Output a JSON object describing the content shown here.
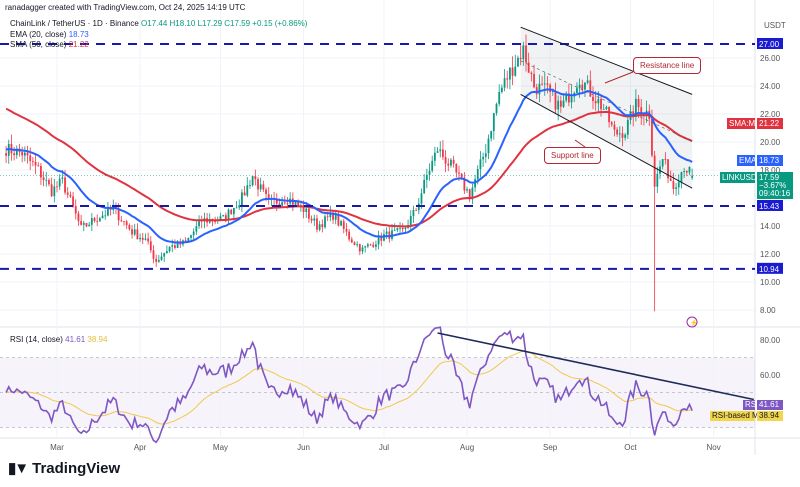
{
  "credit": "ranadagger created with TradingView.com, Oct 24, 2025 14:19 UTC",
  "legend": {
    "symbol": "ChainLink / TetherUS · 1D · Binance",
    "o": "O17.44",
    "h": "H18.10",
    "l": "L17.29",
    "c": "C17.59",
    "chg": "+0.15 (+0.86%)",
    "ema": "EMA (20, close)",
    "ema_val": "18.73",
    "sma": "SMA (50, close)",
    "sma_val": "21.22",
    "rsi": "RSI (14, close)",
    "rsi_val": "41.61",
    "rsi_ma_val": "38.94"
  },
  "axis": {
    "currency": "USDT",
    "price_ticks": [
      "26.00",
      "24.00",
      "22.00",
      "20.00",
      "18.00",
      "14.00",
      "12.00",
      "10.00",
      "8.00"
    ],
    "rsi_ticks": [
      "80.00",
      "60.00"
    ],
    "date_ticks": [
      {
        "label": "Mar",
        "date": "2025-03-01"
      },
      {
        "label": "Apr",
        "date": "2025-04-01"
      },
      {
        "label": "May",
        "date": "2025-05-01"
      },
      {
        "label": "Jun",
        "date": "2025-06-01"
      },
      {
        "label": "Jul",
        "date": "2025-07-01"
      },
      {
        "label": "Aug",
        "date": "2025-08-01"
      },
      {
        "label": "Sep",
        "date": "2025-09-01"
      },
      {
        "label": "Oct",
        "date": "2025-10-01"
      },
      {
        "label": "Nov",
        "date": "2025-11-01"
      }
    ]
  },
  "badges": {
    "level_top": "27.00",
    "level_mid": "15.43",
    "level_low": "10.94",
    "sma_name": "SMA:MA",
    "sma_val": "21.22",
    "ema_name": "EMA",
    "ema_val": "18.73",
    "sym": "LINKUSDT",
    "price": "17.59",
    "pct": "−3.67%",
    "countdown": "09:40:16",
    "rsi_name": "RSI",
    "rsi_val": "41.61",
    "rsima_name": "RSI-based MA",
    "rsima_val": "38.94"
  },
  "annotations": {
    "resistance": "Resistance line",
    "support": "Support line"
  },
  "colors": {
    "up": "#089981",
    "down": "#f23645",
    "ema": "#2962ff",
    "sma": "#e0323f",
    "level": "#1a1aa8",
    "rsi": "#7e57c2",
    "rsi_ma": "#f2c94c"
  },
  "brand": "TradingView",
  "chart_data": {
    "type": "candlestick",
    "timeframe": "1D",
    "ylim": [
      7,
      29
    ],
    "rsi_ylim": [
      25,
      90
    ],
    "closes": [
      [
        "2025-02-10",
        19.5
      ],
      [
        "2025-02-16",
        19.2
      ],
      [
        "2025-02-22",
        18
      ],
      [
        "2025-02-27",
        16.5
      ],
      [
        "2025-03-03",
        17.2
      ],
      [
        "2025-03-10",
        13.8
      ],
      [
        "2025-03-16",
        14.6
      ],
      [
        "2025-03-22",
        15.2
      ],
      [
        "2025-03-29",
        13.6
      ],
      [
        "2025-04-03",
        13.0
      ],
      [
        "2025-04-07",
        11.5
      ],
      [
        "2025-04-12",
        12.5
      ],
      [
        "2025-04-18",
        12.8
      ],
      [
        "2025-04-24",
        14.4
      ],
      [
        "2025-05-02",
        14.5
      ],
      [
        "2025-05-09",
        16.0
      ],
      [
        "2025-05-13",
        17.6
      ],
      [
        "2025-05-19",
        15.6
      ],
      [
        "2025-05-26",
        16.0
      ],
      [
        "2025-06-01",
        15.2
      ],
      [
        "2025-06-06",
        14.0
      ],
      [
        "2025-06-12",
        14.8
      ],
      [
        "2025-06-18",
        13.2
      ],
      [
        "2025-06-23",
        12.3
      ],
      [
        "2025-07-01",
        13.3
      ],
      [
        "2025-07-08",
        13.6
      ],
      [
        "2025-07-13",
        15.2
      ],
      [
        "2025-07-17",
        17.6
      ],
      [
        "2025-07-21",
        19.5
      ],
      [
        "2025-07-27",
        18.0
      ],
      [
        "2025-08-02",
        16.2
      ],
      [
        "2025-08-08",
        19.5
      ],
      [
        "2025-08-13",
        23.5
      ],
      [
        "2025-08-17",
        25.0
      ],
      [
        "2025-08-22",
        26.6
      ],
      [
        "2025-08-26",
        24.0
      ],
      [
        "2025-08-31",
        23.6
      ],
      [
        "2025-09-05",
        22.4
      ],
      [
        "2025-09-12",
        24.6
      ],
      [
        "2025-09-16",
        23.6
      ],
      [
        "2025-09-21",
        22.4
      ],
      [
        "2025-09-25",
        20.6
      ],
      [
        "2025-09-29",
        20.8
      ],
      [
        "2025-10-03",
        22.6
      ],
      [
        "2025-10-08",
        22.0
      ],
      [
        "2025-10-10",
        17.0
      ],
      [
        "2025-10-13",
        18.8
      ],
      [
        "2025-10-17",
        16.8
      ],
      [
        "2025-10-21",
        18.3
      ],
      [
        "2025-10-24",
        17.59
      ]
    ],
    "wick_low": {
      "date": "2025-10-10",
      "low": 7.9
    },
    "last_candle": {
      "open": 17.44,
      "high": 18.1,
      "low": 17.29,
      "close": 17.59
    },
    "levels": [
      27.0,
      15.43,
      10.94
    ],
    "channel": {
      "upper": [
        [
          "2025-08-21",
          28.2
        ],
        [
          "2025-10-24",
          23.4
        ]
      ],
      "lower": [
        [
          "2025-08-21",
          23.4
        ],
        [
          "2025-10-24",
          16.7
        ]
      ]
    },
    "rsi_trendline": [
      [
        "2025-07-21",
        84
      ],
      [
        "2025-11-16",
        46
      ]
    ],
    "rsi_bands": [
      70,
      50,
      30
    ]
  }
}
